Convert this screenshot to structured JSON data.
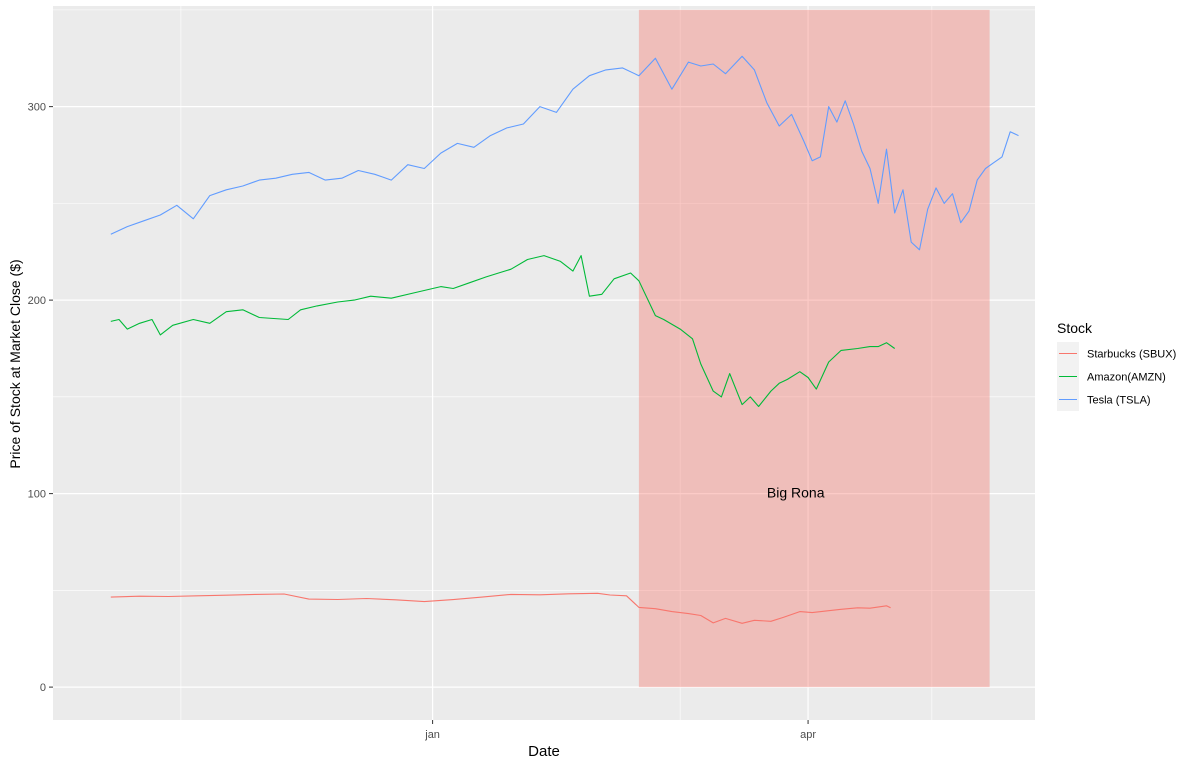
{
  "chart_data": {
    "type": "line",
    "title": "",
    "xlabel": "Date",
    "ylabel": "Price of Stock at Market Close ($)",
    "xlim": [
      "2019-10-01",
      "2020-05-26"
    ],
    "ylim": [
      -17,
      352
    ],
    "x_ticks": [
      {
        "date": "2019-11-01",
        "label": ""
      },
      {
        "date": "2020-01-01",
        "label": "jan"
      },
      {
        "date": "2020-03-01",
        "label": ""
      },
      {
        "date": "2020-04-01",
        "label": "apr"
      },
      {
        "date": "2020-05-01",
        "label": ""
      }
    ],
    "y_ticks": [
      0,
      100,
      200,
      300
    ],
    "grid": true,
    "legend": {
      "title": "Stock",
      "position": "right"
    },
    "annotation": {
      "text": "Big Rona",
      "x": "2020-03-29",
      "y": 100
    },
    "shaded_region": {
      "x_start": "2020-02-20",
      "x_end": "2020-05-15",
      "y_start": 0,
      "y_end": 350,
      "color": "#F8766D"
    },
    "series": [
      {
        "name": "Starbucks (SBUX)",
        "color": "#F8766D",
        "points": [
          [
            "2019-10-15",
            46.5
          ],
          [
            "2019-10-22",
            47.0
          ],
          [
            "2019-10-29",
            46.8
          ],
          [
            "2019-11-05",
            47.2
          ],
          [
            "2019-11-12",
            47.5
          ],
          [
            "2019-11-19",
            47.9
          ],
          [
            "2019-11-26",
            48.1
          ],
          [
            "2019-12-02",
            45.5
          ],
          [
            "2019-12-09",
            45.3
          ],
          [
            "2019-12-16",
            45.8
          ],
          [
            "2019-12-23",
            45.1
          ],
          [
            "2019-12-30",
            44.2
          ],
          [
            "2020-01-06",
            45.2
          ],
          [
            "2020-01-13",
            46.5
          ],
          [
            "2020-01-20",
            47.9
          ],
          [
            "2020-01-27",
            47.7
          ],
          [
            "2020-02-03",
            48.2
          ],
          [
            "2020-02-10",
            48.5
          ],
          [
            "2020-02-13",
            47.6
          ],
          [
            "2020-02-17",
            47.2
          ],
          [
            "2020-02-20",
            41.2
          ],
          [
            "2020-02-24",
            40.5
          ],
          [
            "2020-02-28",
            39.0
          ],
          [
            "2020-03-03",
            38.0
          ],
          [
            "2020-03-06",
            37.0
          ],
          [
            "2020-03-09",
            33.2
          ],
          [
            "2020-03-12",
            35.5
          ],
          [
            "2020-03-16",
            33.0
          ],
          [
            "2020-03-19",
            34.5
          ],
          [
            "2020-03-23",
            34.0
          ],
          [
            "2020-03-26",
            36.0
          ],
          [
            "2020-03-30",
            39.0
          ],
          [
            "2020-04-02",
            38.5
          ],
          [
            "2020-04-06",
            39.5
          ],
          [
            "2020-04-09",
            40.2
          ],
          [
            "2020-04-13",
            41.0
          ],
          [
            "2020-04-16",
            40.8
          ],
          [
            "2020-04-20",
            42.0
          ],
          [
            "2020-04-21",
            41.0
          ]
        ]
      },
      {
        "name": "Amazon(AMZN)",
        "color": "#00BA38",
        "points": [
          [
            "2019-10-15",
            189
          ],
          [
            "2019-10-17",
            190
          ],
          [
            "2019-10-19",
            185
          ],
          [
            "2019-10-22",
            188
          ],
          [
            "2019-10-25",
            190
          ],
          [
            "2019-10-27",
            182
          ],
          [
            "2019-10-30",
            187
          ],
          [
            "2019-11-04",
            190
          ],
          [
            "2019-11-08",
            188
          ],
          [
            "2019-11-12",
            194
          ],
          [
            "2019-11-16",
            195
          ],
          [
            "2019-11-20",
            191
          ],
          [
            "2019-11-27",
            190
          ],
          [
            "2019-11-30",
            195
          ],
          [
            "2019-12-04",
            197
          ],
          [
            "2019-12-09",
            199
          ],
          [
            "2019-12-13",
            200
          ],
          [
            "2019-12-17",
            202
          ],
          [
            "2019-12-22",
            201
          ],
          [
            "2019-12-28",
            204
          ],
          [
            "2020-01-03",
            207
          ],
          [
            "2020-01-06",
            206
          ],
          [
            "2020-01-10",
            209
          ],
          [
            "2020-01-14",
            212
          ],
          [
            "2020-01-17",
            214
          ],
          [
            "2020-01-20",
            216
          ],
          [
            "2020-01-24",
            221
          ],
          [
            "2020-01-28",
            223
          ],
          [
            "2020-02-01",
            220
          ],
          [
            "2020-02-04",
            215
          ],
          [
            "2020-02-06",
            223
          ],
          [
            "2020-02-08",
            202
          ],
          [
            "2020-02-11",
            203
          ],
          [
            "2020-02-14",
            211
          ],
          [
            "2020-02-18",
            214
          ],
          [
            "2020-02-20",
            210
          ],
          [
            "2020-02-24",
            192
          ],
          [
            "2020-02-26",
            190
          ],
          [
            "2020-03-01",
            185
          ],
          [
            "2020-03-04",
            180
          ],
          [
            "2020-03-06",
            167
          ],
          [
            "2020-03-09",
            153
          ],
          [
            "2020-03-11",
            150
          ],
          [
            "2020-03-13",
            162
          ],
          [
            "2020-03-16",
            146
          ],
          [
            "2020-03-18",
            150
          ],
          [
            "2020-03-20",
            145
          ],
          [
            "2020-03-23",
            153
          ],
          [
            "2020-03-25",
            157
          ],
          [
            "2020-03-27",
            159
          ],
          [
            "2020-03-30",
            163
          ],
          [
            "2020-04-01",
            160
          ],
          [
            "2020-04-03",
            154
          ],
          [
            "2020-04-06",
            168
          ],
          [
            "2020-04-09",
            174
          ],
          [
            "2020-04-13",
            175
          ],
          [
            "2020-04-16",
            176
          ],
          [
            "2020-04-18",
            176
          ],
          [
            "2020-04-20",
            178
          ],
          [
            "2020-04-22",
            175
          ]
        ]
      },
      {
        "name": "Tesla (TSLA)",
        "color": "#619CFF",
        "points": [
          [
            "2019-10-15",
            234
          ],
          [
            "2019-10-19",
            238
          ],
          [
            "2019-10-23",
            241
          ],
          [
            "2019-10-27",
            244
          ],
          [
            "2019-10-31",
            249
          ],
          [
            "2019-11-04",
            242
          ],
          [
            "2019-11-08",
            254
          ],
          [
            "2019-11-12",
            257
          ],
          [
            "2019-11-16",
            259
          ],
          [
            "2019-11-20",
            262
          ],
          [
            "2019-11-24",
            263
          ],
          [
            "2019-11-28",
            265
          ],
          [
            "2019-12-02",
            266
          ],
          [
            "2019-12-06",
            262
          ],
          [
            "2019-12-10",
            263
          ],
          [
            "2019-12-14",
            267
          ],
          [
            "2019-12-18",
            265
          ],
          [
            "2019-12-22",
            262
          ],
          [
            "2019-12-26",
            270
          ],
          [
            "2019-12-30",
            268
          ],
          [
            "2020-01-03",
            276
          ],
          [
            "2020-01-07",
            281
          ],
          [
            "2020-01-11",
            279
          ],
          [
            "2020-01-15",
            285
          ],
          [
            "2020-01-19",
            289
          ],
          [
            "2020-01-23",
            291
          ],
          [
            "2020-01-27",
            300
          ],
          [
            "2020-01-31",
            297
          ],
          [
            "2020-02-04",
            309
          ],
          [
            "2020-02-08",
            316
          ],
          [
            "2020-02-12",
            319
          ],
          [
            "2020-02-16",
            320
          ],
          [
            "2020-02-20",
            316
          ],
          [
            "2020-02-24",
            325
          ],
          [
            "2020-02-28",
            309
          ],
          [
            "2020-03-03",
            323
          ],
          [
            "2020-03-06",
            321
          ],
          [
            "2020-03-09",
            322
          ],
          [
            "2020-03-12",
            317
          ],
          [
            "2020-03-16",
            326
          ],
          [
            "2020-03-19",
            319
          ],
          [
            "2020-03-22",
            302
          ],
          [
            "2020-03-25",
            290
          ],
          [
            "2020-03-28",
            296
          ],
          [
            "2020-03-31",
            282
          ],
          [
            "2020-04-02",
            272
          ],
          [
            "2020-04-04",
            274
          ],
          [
            "2020-04-06",
            300
          ],
          [
            "2020-04-08",
            292
          ],
          [
            "2020-04-10",
            303
          ],
          [
            "2020-04-12",
            291
          ],
          [
            "2020-04-14",
            277
          ],
          [
            "2020-04-16",
            268
          ],
          [
            "2020-04-18",
            250
          ],
          [
            "2020-04-20",
            278
          ],
          [
            "2020-04-22",
            245
          ],
          [
            "2020-04-24",
            257
          ],
          [
            "2020-04-26",
            230
          ],
          [
            "2020-04-28",
            226
          ],
          [
            "2020-04-30",
            247
          ],
          [
            "2020-05-02",
            258
          ],
          [
            "2020-05-04",
            250
          ],
          [
            "2020-05-06",
            255
          ],
          [
            "2020-05-08",
            240
          ],
          [
            "2020-05-10",
            246
          ],
          [
            "2020-05-12",
            262
          ],
          [
            "2020-05-14",
            268
          ],
          [
            "2020-05-16",
            271
          ],
          [
            "2020-05-18",
            274
          ],
          [
            "2020-05-20",
            287
          ],
          [
            "2020-05-22",
            285
          ]
        ]
      }
    ]
  }
}
